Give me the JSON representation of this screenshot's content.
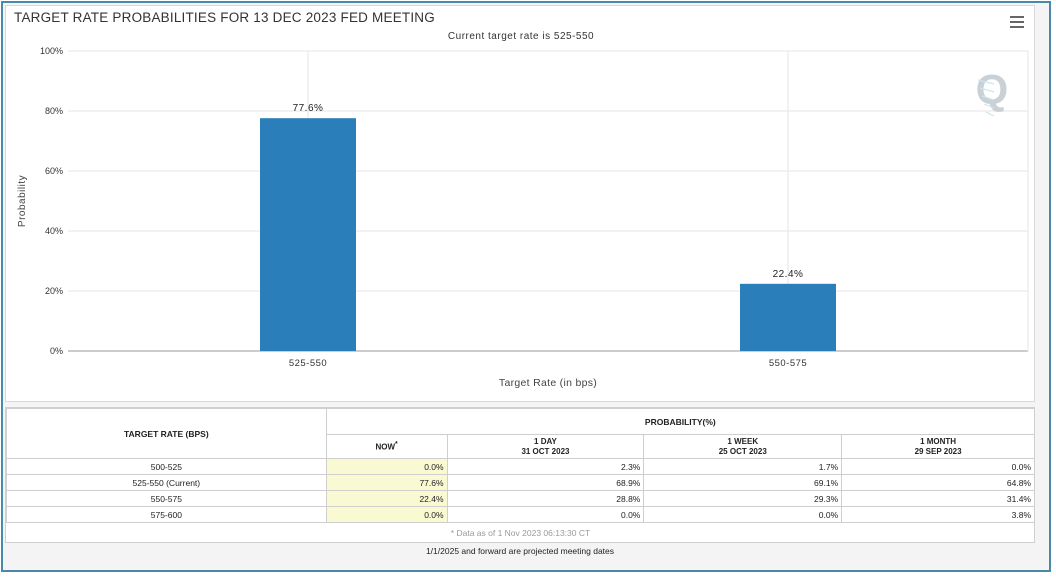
{
  "chart_data": {
    "type": "bar",
    "title": "TARGET RATE PROBABILITIES FOR 13 DEC 2023 FED MEETING",
    "subtitle": "Current target rate is 525-550",
    "categories": [
      "525-550",
      "550-575"
    ],
    "values": [
      77.6,
      22.4
    ],
    "data_labels": [
      "77.6%",
      "22.4%"
    ],
    "xlabel": "Target Rate (in bps)",
    "ylabel": "Probability",
    "ylim": [
      0,
      100
    ],
    "yticks": [
      "0%",
      "20%",
      "40%",
      "60%",
      "80%",
      "100%"
    ],
    "ytick_values": [
      0,
      20,
      40,
      60,
      80,
      100
    ],
    "bar_color": "#2a7fba",
    "grid": true
  },
  "table": {
    "rate_header": "TARGET RATE (BPS)",
    "prob_header": "PROBABILITY(%)",
    "columns": [
      {
        "line1": "NOW",
        "mark": "*",
        "line2": ""
      },
      {
        "line1": "1 DAY",
        "line2": "31 OCT 2023"
      },
      {
        "line1": "1 WEEK",
        "line2": "25 OCT 2023"
      },
      {
        "line1": "1 MONTH",
        "line2": "29 SEP 2023"
      }
    ],
    "rows": [
      {
        "rate": "500-525",
        "values": [
          "0.0%",
          "2.3%",
          "1.7%",
          "0.0%"
        ]
      },
      {
        "rate": "525-550 (Current)",
        "values": [
          "77.6%",
          "68.9%",
          "69.1%",
          "64.8%"
        ]
      },
      {
        "rate": "550-575",
        "values": [
          "22.4%",
          "28.8%",
          "29.3%",
          "31.4%"
        ]
      },
      {
        "rate": "575-600",
        "values": [
          "0.0%",
          "0.0%",
          "0.0%",
          "3.8%"
        ]
      }
    ],
    "footnote": "* Data as of 1 Nov 2023 06:13:30 CT"
  },
  "bottom_note": "1/1/2025 and forward are projected meeting dates",
  "watermark": "Q"
}
